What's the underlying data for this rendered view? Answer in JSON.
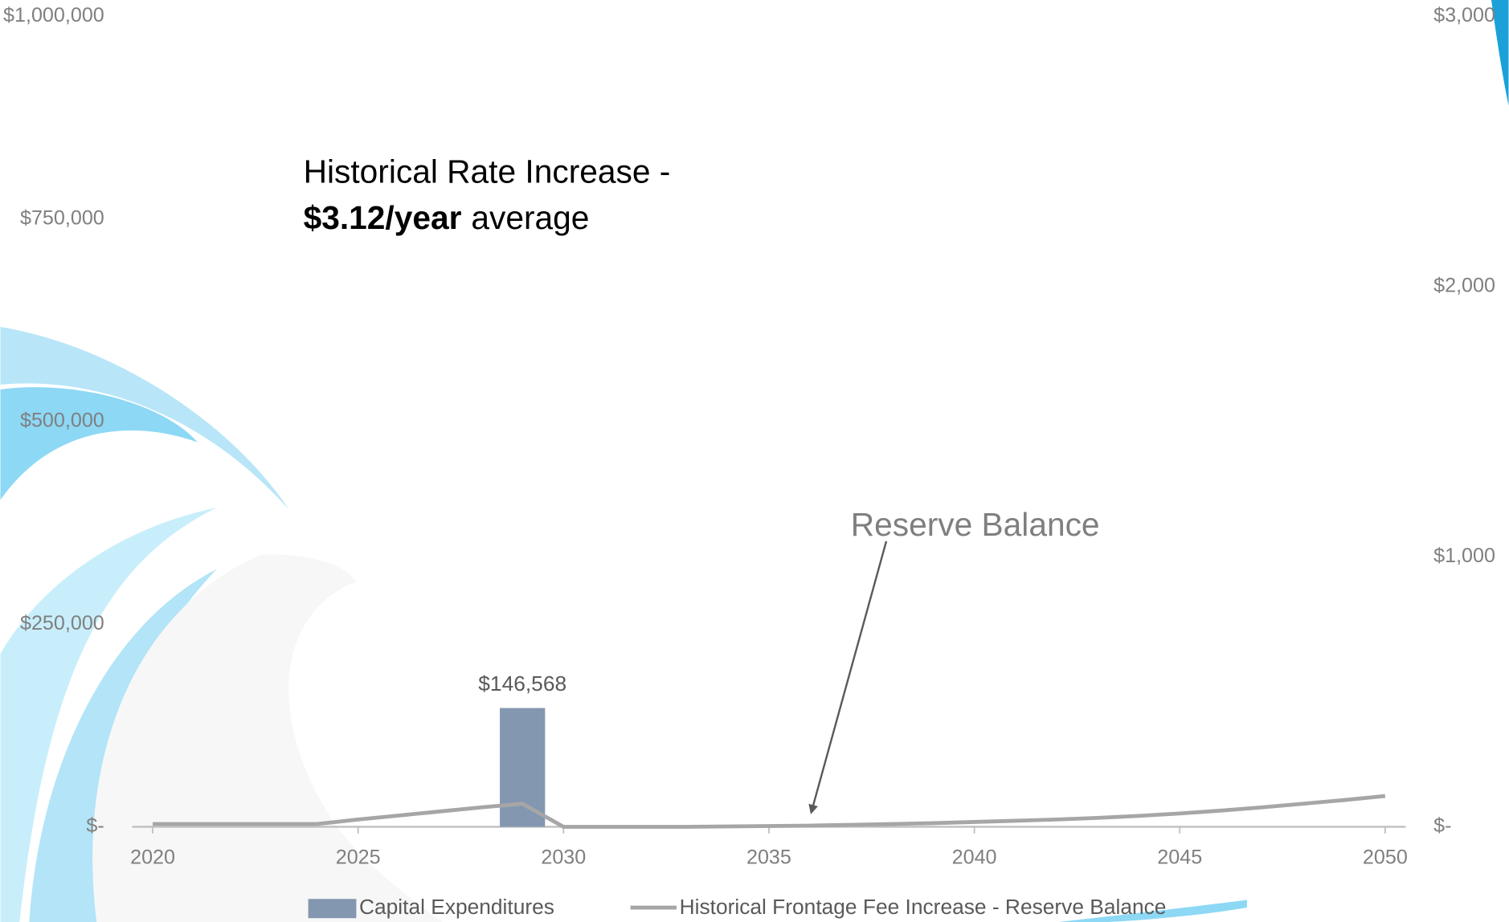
{
  "chart_data": {
    "type": "bar-line",
    "x": [
      2020,
      2021,
      2022,
      2023,
      2024,
      2025,
      2026,
      2027,
      2028,
      2029,
      2030,
      2031,
      2032,
      2033,
      2034,
      2035,
      2036,
      2037,
      2038,
      2039,
      2040,
      2041,
      2042,
      2043,
      2044,
      2045,
      2046,
      2047,
      2048,
      2049,
      2050
    ],
    "xlim": [
      2019.5,
      2050.5
    ],
    "xticks": [
      2020,
      2025,
      2030,
      2035,
      2040,
      2045,
      2050
    ],
    "ylim": [
      0,
      1000000
    ],
    "yticks": [
      {
        "value": 0,
        "label": "$-"
      },
      {
        "value": 250000,
        "label": "$250,000"
      },
      {
        "value": 500000,
        "label": "$500,000"
      },
      {
        "value": 750000,
        "label": "$750,000"
      },
      {
        "value": 1000000,
        "label": "$1,000,000"
      }
    ],
    "y2lim": [
      0,
      3000
    ],
    "y2ticks": [
      {
        "value": 0,
        "label": "$-"
      },
      {
        "value": 1000,
        "label": "$1,000"
      },
      {
        "value": 2000,
        "label": "$2,000"
      },
      {
        "value": 3000,
        "label": "$3,000"
      }
    ],
    "series": [
      {
        "name": "Capital Expenditures",
        "type": "bar",
        "color": "#8497b0",
        "values": [
          0,
          0,
          0,
          0,
          0,
          0,
          0,
          0,
          0,
          146568,
          0,
          0,
          0,
          0,
          0,
          0,
          0,
          0,
          0,
          0,
          0,
          0,
          0,
          0,
          0,
          0,
          0,
          0,
          0,
          0,
          0
        ],
        "value_labels": [
          null,
          null,
          null,
          null,
          null,
          null,
          null,
          null,
          null,
          "$146,568",
          null,
          null,
          null,
          null,
          null,
          null,
          null,
          null,
          null,
          null,
          null,
          null,
          null,
          null,
          null,
          null,
          null,
          null,
          null,
          null,
          null
        ]
      },
      {
        "name": "Historical Frontage Fee Increase - Reserve Balance",
        "type": "line",
        "color": "#a6a6a6",
        "values": [
          3500,
          3500,
          3500,
          3500,
          3500,
          9000,
          14000,
          19000,
          24000,
          28500,
          0,
          0,
          0,
          0,
          500,
          1000,
          1500,
          2500,
          3500,
          4500,
          6000,
          7500,
          9000,
          11000,
          13500,
          16500,
          20000,
          24000,
          28500,
          33000,
          38000
        ]
      }
    ],
    "annotations": {
      "rate_line1": "Historical Rate Increase -",
      "rate_bold": "$3.12/year",
      "rate_rest": "average",
      "reserve": "Reserve Balance"
    }
  }
}
